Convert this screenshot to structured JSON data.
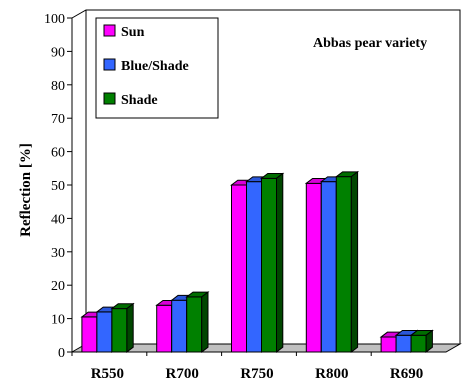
{
  "chart_data": {
    "type": "bar",
    "ylabel": "Reflection [%]",
    "ylim": [
      0,
      100
    ],
    "yticks": [
      0,
      10,
      20,
      30,
      40,
      50,
      60,
      70,
      80,
      90,
      100
    ],
    "categories": [
      "R550",
      "R700",
      "R750",
      "R800",
      "R690"
    ],
    "series": [
      {
        "name": "Sun",
        "color": "#ff00ff",
        "values": [
          10.5,
          14,
          50,
          50.5,
          4.5
        ]
      },
      {
        "name": "Blue/Shade",
        "color": "#3366ff",
        "values": [
          12,
          15.5,
          51,
          51,
          5
        ]
      },
      {
        "name": "Shade",
        "color": "#008000",
        "values": [
          13,
          16.5,
          52,
          52.5,
          5
        ]
      }
    ],
    "annotation": "Abbas pear variety",
    "legend_position": "top-left",
    "grid": false,
    "style": "3d-bars"
  }
}
